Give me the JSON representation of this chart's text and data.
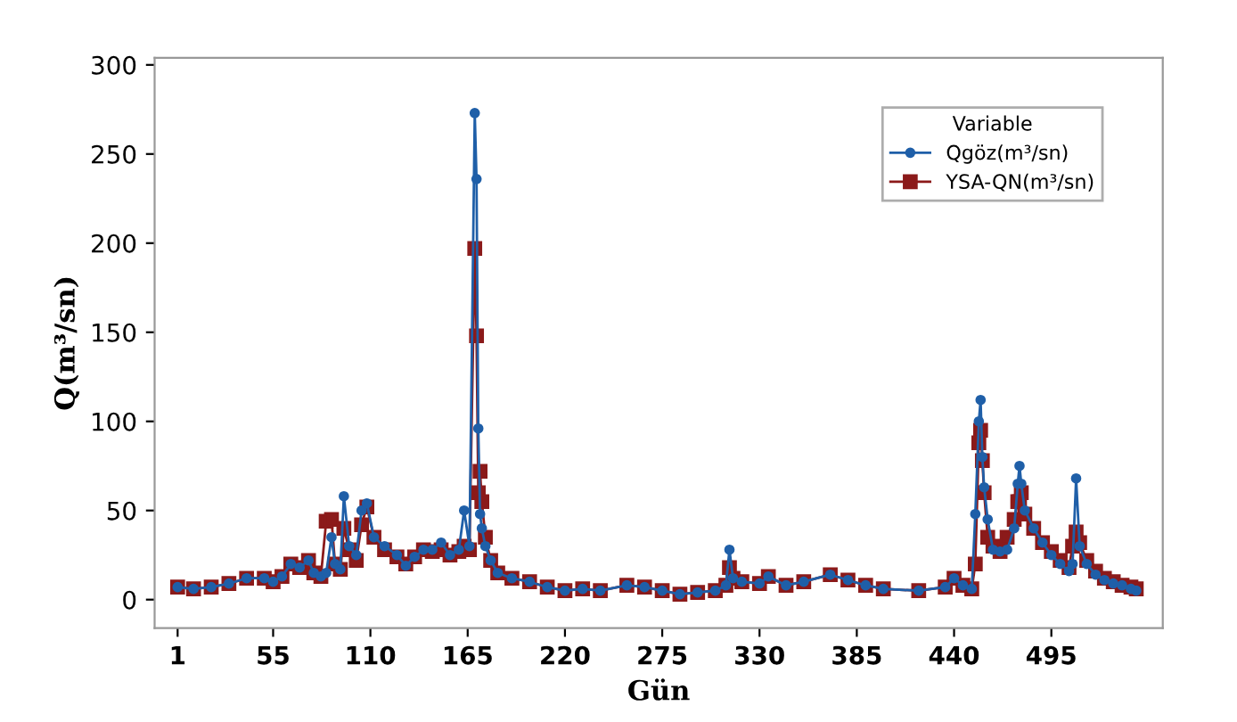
{
  "chart_data": {
    "type": "line",
    "xlabel": "Gün",
    "ylabel": "Q(m³/sn)",
    "legend_title": "Variable",
    "legend": "top right",
    "grid": false,
    "xlim": [
      -12,
      558
    ],
    "ylim": [
      -16,
      304
    ],
    "xticks": [
      1,
      55,
      110,
      165,
      220,
      275,
      330,
      385,
      440,
      495
    ],
    "yticks": [
      0,
      50,
      100,
      150,
      200,
      250,
      300
    ],
    "series": [
      {
        "name": "Qgöz(m³/sn)",
        "color": "#1f5fa8",
        "marker": "circle",
        "line_style": "solid",
        "x": [
          1,
          10,
          20,
          30,
          40,
          50,
          55,
          60,
          65,
          70,
          75,
          78,
          82,
          85,
          88,
          90,
          93,
          95,
          98,
          102,
          105,
          108,
          112,
          118,
          125,
          130,
          135,
          140,
          145,
          150,
          155,
          160,
          163,
          166,
          169,
          170,
          171,
          172,
          173,
          175,
          178,
          182,
          190,
          200,
          210,
          220,
          230,
          240,
          255,
          265,
          275,
          285,
          295,
          305,
          311,
          313,
          315,
          320,
          330,
          335,
          345,
          355,
          370,
          380,
          390,
          400,
          420,
          435,
          440,
          445,
          450,
          452,
          454,
          455,
          456,
          457,
          459,
          462,
          466,
          470,
          474,
          476,
          477,
          478,
          480,
          485,
          490,
          495,
          500,
          505,
          507,
          509,
          511,
          515,
          520,
          525,
          530,
          535,
          540,
          543
        ],
        "values": [
          7,
          6,
          7,
          9,
          12,
          12,
          10,
          13,
          20,
          18,
          22,
          15,
          13,
          15,
          35,
          20,
          17,
          58,
          30,
          25,
          50,
          54,
          35,
          30,
          25,
          19,
          24,
          28,
          28,
          32,
          25,
          28,
          50,
          30,
          273,
          236,
          96,
          48,
          40,
          30,
          22,
          15,
          12,
          10,
          7,
          5,
          6,
          5,
          8,
          7,
          5,
          3,
          4,
          5,
          8,
          28,
          12,
          10,
          9,
          13,
          8,
          10,
          14,
          11,
          8,
          6,
          5,
          7,
          12,
          8,
          6,
          48,
          100,
          112,
          80,
          63,
          45,
          28,
          27,
          28,
          40,
          65,
          75,
          65,
          50,
          40,
          32,
          25,
          20,
          16,
          20,
          68,
          30,
          20,
          14,
          11,
          9,
          8,
          6,
          5
        ]
      },
      {
        "name": "YSA-QN(m³/sn)",
        "color": "#8b1a1a",
        "marker": "square",
        "line_style": "solid",
        "x": [
          1,
          10,
          20,
          30,
          40,
          50,
          55,
          60,
          65,
          70,
          75,
          78,
          82,
          85,
          88,
          90,
          93,
          95,
          98,
          102,
          105,
          108,
          112,
          118,
          125,
          130,
          135,
          140,
          145,
          150,
          155,
          160,
          163,
          166,
          169,
          170,
          171,
          172,
          173,
          175,
          178,
          182,
          190,
          200,
          210,
          220,
          230,
          240,
          255,
          265,
          275,
          285,
          295,
          305,
          311,
          313,
          315,
          320,
          330,
          335,
          345,
          355,
          370,
          380,
          390,
          400,
          420,
          435,
          440,
          445,
          450,
          452,
          454,
          455,
          456,
          457,
          459,
          462,
          466,
          470,
          474,
          476,
          477,
          478,
          480,
          485,
          490,
          495,
          500,
          505,
          507,
          509,
          511,
          515,
          520,
          525,
          530,
          535,
          540,
          543
        ],
        "values": [
          7,
          6,
          7,
          9,
          12,
          12,
          10,
          13,
          20,
          18,
          22,
          15,
          13,
          44,
          45,
          20,
          17,
          40,
          28,
          22,
          42,
          52,
          35,
          28,
          24,
          20,
          24,
          28,
          27,
          28,
          25,
          27,
          30,
          28,
          197,
          148,
          60,
          72,
          55,
          35,
          22,
          15,
          12,
          10,
          7,
          5,
          6,
          5,
          8,
          7,
          5,
          3,
          4,
          5,
          8,
          18,
          12,
          10,
          9,
          13,
          8,
          10,
          14,
          11,
          8,
          6,
          5,
          7,
          12,
          8,
          6,
          20,
          88,
          95,
          78,
          60,
          35,
          30,
          27,
          35,
          45,
          55,
          55,
          60,
          48,
          40,
          32,
          27,
          22,
          18,
          30,
          38,
          32,
          22,
          16,
          12,
          10,
          8,
          7,
          6
        ]
      }
    ]
  }
}
